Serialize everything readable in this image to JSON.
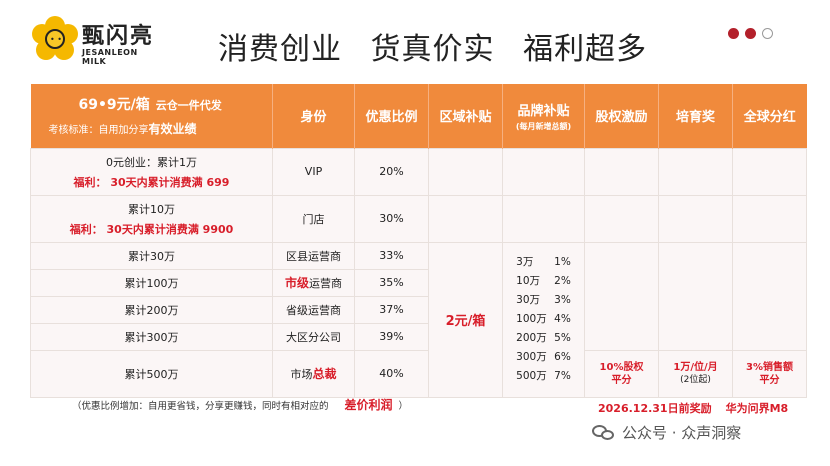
{
  "brand": {
    "name_cn": "甄闪亮",
    "name_en": "JESANLEON MILK",
    "logo_icon": "flower-logo-icon"
  },
  "slogan": [
    "消费创业",
    "货真价实",
    "福利超多"
  ],
  "pager": {
    "total": 3,
    "active": 2
  },
  "header": {
    "price": "69•9元/箱",
    "price_note": "云仓一件代发",
    "assessment": "考核标准：自用加分享",
    "assessment_bold": "有效业绩",
    "identity": "身份",
    "discount": "优惠比例",
    "regional": "区域补贴",
    "brand_subsidy": "品牌补贴",
    "brand_subsidy_sub": "(每月新增总额)",
    "equity": "股权激励",
    "cultivation": "培育奖",
    "global_dividend": "全球分红"
  },
  "rows": [
    {
      "condition": "0元创业：累计1万",
      "welfare": "福利：  30天内累计消费满 699",
      "identity": "VIP",
      "identity_prefix": "",
      "identity_red": "",
      "identity_suffix": "",
      "discount": "20%"
    },
    {
      "condition": "累计10万",
      "welfare": "福利：  30天内累计消费满 9900",
      "identity": "门店",
      "identity_prefix": "",
      "identity_red": "",
      "identity_suffix": "",
      "discount": "30%"
    },
    {
      "condition": "累计30万",
      "welfare": "",
      "identity": "区县运营商",
      "discount": "33%"
    },
    {
      "condition": "累计100万",
      "welfare": "",
      "identity_red": "市级",
      "identity_suffix": "运营商",
      "discount": "35%"
    },
    {
      "condition": "累计200万",
      "welfare": "",
      "identity": "省级运营商",
      "discount": "37%"
    },
    {
      "condition": "累计300万",
      "welfare": "",
      "identity": "大区分公司",
      "discount": "39%"
    },
    {
      "condition": "累计500万",
      "welfare": "",
      "identity_prefix": "市场",
      "identity_red": "总裁",
      "discount": "40%"
    }
  ],
  "regional_value": "2元/箱",
  "brand_subsidy_list": [
    {
      "amount": "3万",
      "rate": "1%"
    },
    {
      "amount": "10万",
      "rate": "2%"
    },
    {
      "amount": "30万",
      "rate": "3%"
    },
    {
      "amount": "100万",
      "rate": "4%"
    },
    {
      "amount": "200万",
      "rate": "5%"
    },
    {
      "amount": "300万",
      "rate": "6%"
    },
    {
      "amount": "500万",
      "rate": "7%"
    }
  ],
  "equity_value": {
    "line1": "10%股权",
    "line2": "平分"
  },
  "cultivation_value": {
    "line1": "1万/位/月",
    "line2": "(2位起)"
  },
  "dividend_value": {
    "line1": "3%销售额",
    "line2": "平分"
  },
  "footnote": {
    "text": "（优惠比例增加：自用更省钱，分享更赚钱，同时有相对应的",
    "highlight": "差价利润",
    "close": "）"
  },
  "reward": {
    "deadline": "2026.12.31日前奖励",
    "prize": "华为问界M8"
  },
  "watermark": "公众号 · 众声洞察"
}
